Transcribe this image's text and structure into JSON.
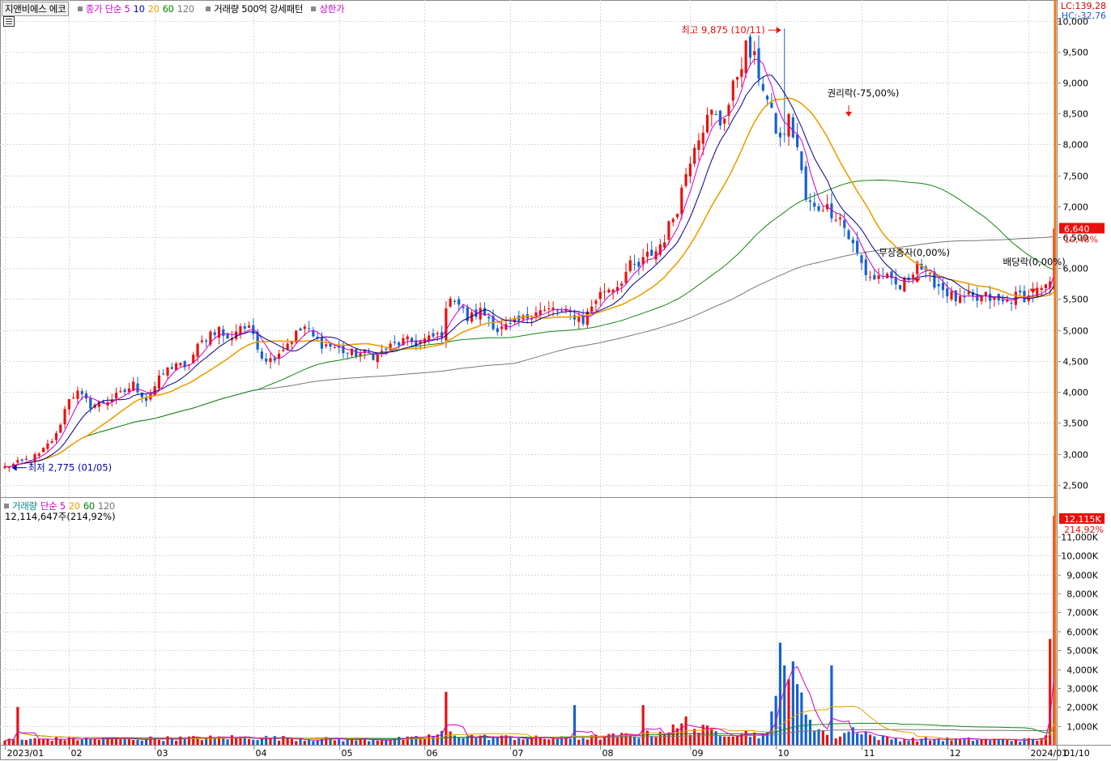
{
  "header": {
    "stock_name": "지앤비에스 에코",
    "price_legend": [
      {
        "text": "종가 단순 5",
        "color": "#cc00cc"
      },
      {
        "text": "10",
        "color": "#0000cc"
      },
      {
        "text": "20",
        "color": "#e8a000"
      },
      {
        "text": "60",
        "color": "#008800"
      },
      {
        "text": "120",
        "color": "#777777"
      }
    ],
    "pattern_label": "거래량 500억 강세패턴",
    "limit_label": "상한가",
    "lc_label": "LC:139,28",
    "hc_label": "HC:-32,76"
  },
  "volume_legend": [
    {
      "text": "거래량",
      "color": "#008888"
    },
    {
      "text": "단순 5",
      "color": "#cc00cc"
    },
    {
      "text": "20",
      "color": "#e8a000"
    },
    {
      "text": "60",
      "color": "#008800"
    },
    {
      "text": "120",
      "color": "#777777"
    }
  ],
  "volume_info": "12,114,647주(214,92%)",
  "colors": {
    "up": "#e8100c",
    "down": "#1560d0",
    "ma5": "#cc00cc",
    "ma10": "#000088",
    "ma20": "#e8a000",
    "ma60": "#118811",
    "ma120": "#777777",
    "grid": "#d8d8d8",
    "cursor": "#f07818"
  },
  "chart_data": {
    "type": "candlestick",
    "price_axis": {
      "min": 2300,
      "max": 10100,
      "ticks": [
        2500,
        3000,
        3500,
        4000,
        4500,
        5000,
        5500,
        6000,
        6500,
        7000,
        7500,
        8000,
        8500,
        9000,
        9500,
        10000
      ],
      "tick_labels": [
        "2,500",
        "3,000",
        "3,500",
        "4,000",
        "4,500",
        "5,000",
        "5,500",
        "6,000",
        "6,500",
        "7,000",
        "7,500",
        "8,000",
        "8,500",
        "9,000",
        "9,500",
        "10,000"
      ]
    },
    "volume_axis": {
      "min": 0,
      "max": 12500000,
      "ticks": [
        1000000,
        2000000,
        3000000,
        4000000,
        5000000,
        6000000,
        7000000,
        8000000,
        9000000,
        10000000,
        11000000
      ],
      "tick_labels": [
        "1,000K",
        "2,000K",
        "3,000K",
        "4,000K",
        "5,000K",
        "6,000K",
        "7,000K",
        "8,000K",
        "9,000K",
        "10,000K",
        "11,000K"
      ]
    },
    "months": [
      {
        "label": "2023/01",
        "day": 0
      },
      {
        "label": "02",
        "day": 15
      },
      {
        "label": "03",
        "day": 35
      },
      {
        "label": "04",
        "day": 58
      },
      {
        "label": "05",
        "day": 78
      },
      {
        "label": "06",
        "day": 98
      },
      {
        "label": "07",
        "day": 118
      },
      {
        "label": "08",
        "day": 139
      },
      {
        "label": "09",
        "day": 160
      },
      {
        "label": "10",
        "day": 180
      },
      {
        "label": "11",
        "day": 200
      },
      {
        "label": "12",
        "day": 220
      },
      {
        "label": "2024/01",
        "day": 239
      }
    ],
    "xaxis_last_label": "01/10",
    "total_days": 246,
    "price_keyframes": [
      [
        0,
        2780
      ],
      [
        4,
        2870
      ],
      [
        8,
        2980
      ],
      [
        12,
        3300
      ],
      [
        15,
        3920
      ],
      [
        17,
        3980
      ],
      [
        20,
        3780
      ],
      [
        23,
        3830
      ],
      [
        27,
        3960
      ],
      [
        30,
        4120
      ],
      [
        33,
        3880
      ],
      [
        37,
        4300
      ],
      [
        40,
        4470
      ],
      [
        42,
        4350
      ],
      [
        45,
        4720
      ],
      [
        48,
        4960
      ],
      [
        50,
        5020
      ],
      [
        52,
        4830
      ],
      [
        55,
        5080
      ],
      [
        58,
        4950
      ],
      [
        60,
        4580
      ],
      [
        62,
        4520
      ],
      [
        65,
        4720
      ],
      [
        68,
        4940
      ],
      [
        70,
        5050
      ],
      [
        72,
        4880
      ],
      [
        74,
        4780
      ],
      [
        77,
        4720
      ],
      [
        80,
        4630
      ],
      [
        84,
        4620
      ],
      [
        87,
        4580
      ],
      [
        89,
        4700
      ],
      [
        93,
        4820
      ],
      [
        96,
        4800
      ],
      [
        99,
        4850
      ],
      [
        102,
        4950
      ],
      [
        104,
        5590
      ],
      [
        106,
        5420
      ],
      [
        108,
        5180
      ],
      [
        111,
        5300
      ],
      [
        113,
        5200
      ],
      [
        115,
        5000
      ],
      [
        118,
        5060
      ],
      [
        121,
        5170
      ],
      [
        124,
        5330
      ],
      [
        126,
        5300
      ],
      [
        128,
        5330
      ],
      [
        130,
        5280
      ],
      [
        133,
        5240
      ],
      [
        135,
        5150
      ],
      [
        138,
        5510
      ],
      [
        140,
        5650
      ],
      [
        143,
        5730
      ],
      [
        146,
        6030
      ],
      [
        148,
        6020
      ],
      [
        150,
        6200
      ],
      [
        152,
        6280
      ],
      [
        154,
        6500
      ],
      [
        157,
        7000
      ],
      [
        159,
        7550
      ],
      [
        161,
        8050
      ],
      [
        163,
        8300
      ],
      [
        165,
        8500
      ],
      [
        167,
        8350
      ],
      [
        169,
        8650
      ],
      [
        171,
        9150
      ],
      [
        173,
        9550
      ],
      [
        175,
        9350
      ],
      [
        177,
        8950
      ],
      [
        179,
        8450
      ],
      [
        181,
        8050
      ],
      [
        183,
        8400
      ],
      [
        185,
        7950
      ],
      [
        187,
        7100
      ],
      [
        189,
        6950
      ],
      [
        191,
        7020
      ],
      [
        193,
        6920
      ],
      [
        195,
        6820
      ],
      [
        197,
        6500
      ],
      [
        199,
        6220
      ],
      [
        201,
        5920
      ],
      [
        203,
        5830
      ],
      [
        205,
        5900
      ],
      [
        207,
        5750
      ],
      [
        209,
        5680
      ],
      [
        211,
        5860
      ],
      [
        213,
        6120
      ],
      [
        215,
        5880
      ],
      [
        217,
        5780
      ],
      [
        219,
        5670
      ],
      [
        221,
        5550
      ],
      [
        223,
        5460
      ],
      [
        225,
        5520
      ],
      [
        227,
        5480
      ],
      [
        229,
        5540
      ],
      [
        231,
        5480
      ],
      [
        233,
        5440
      ],
      [
        235,
        5520
      ],
      [
        237,
        5560
      ],
      [
        239,
        5530
      ],
      [
        241,
        5620
      ],
      [
        243,
        5650
      ],
      [
        244,
        5780
      ],
      [
        245,
        6640
      ]
    ],
    "price_extremes": {
      "high": {
        "day": 182,
        "value": 9875
      },
      "low": {
        "day": 2,
        "value": 2775
      }
    },
    "volume_keyframes": [
      [
        0,
        250000
      ],
      [
        14,
        320000
      ],
      [
        24,
        300000
      ],
      [
        34,
        330000
      ],
      [
        44,
        350000
      ],
      [
        54,
        400000
      ],
      [
        60,
        380000
      ],
      [
        70,
        320000
      ],
      [
        80,
        280000
      ],
      [
        95,
        320000
      ],
      [
        103,
        600000
      ],
      [
        110,
        420000
      ],
      [
        130,
        330000
      ],
      [
        138,
        400000
      ],
      [
        150,
        550000
      ],
      [
        158,
        900000
      ],
      [
        166,
        700000
      ],
      [
        172,
        650000
      ],
      [
        178,
        500000
      ],
      [
        182,
        4200000
      ],
      [
        186,
        2300000
      ],
      [
        190,
        800000
      ],
      [
        194,
        450000
      ],
      [
        199,
        900000
      ],
      [
        203,
        400000
      ],
      [
        210,
        280000
      ],
      [
        218,
        300000
      ],
      [
        226,
        280000
      ],
      [
        235,
        260000
      ],
      [
        242,
        280000
      ],
      [
        244,
        1100000
      ],
      [
        245,
        1200000
      ]
    ],
    "volume_spikes": [
      [
        3,
        2000000
      ],
      [
        103,
        2800000
      ],
      [
        133,
        2100000
      ],
      [
        149,
        2100000
      ],
      [
        159,
        1500000
      ],
      [
        181,
        5400000
      ],
      [
        182,
        4200000
      ],
      [
        193,
        4200000
      ],
      [
        244,
        5600000
      ],
      [
        245,
        12114647
      ]
    ],
    "annotations": [
      {
        "text": "최고 9,875 (10/11)",
        "color": "#e8100c"
      },
      {
        "text": "최저 2,775 (01/05)",
        "color": "#0000aa"
      },
      {
        "text": "권리락(-75,00%)",
        "color": "#000000"
      },
      {
        "text": "무상증자(0,00%)",
        "color": "#000000"
      },
      {
        "text": "배당락(0,00%)",
        "color": "#000000"
      }
    ],
    "current_price": {
      "label": "6,640",
      "change": "10,48%",
      "value": 6640
    },
    "current_volume": {
      "label": "12,115K",
      "change": "214,92%",
      "value": 12114647
    }
  }
}
